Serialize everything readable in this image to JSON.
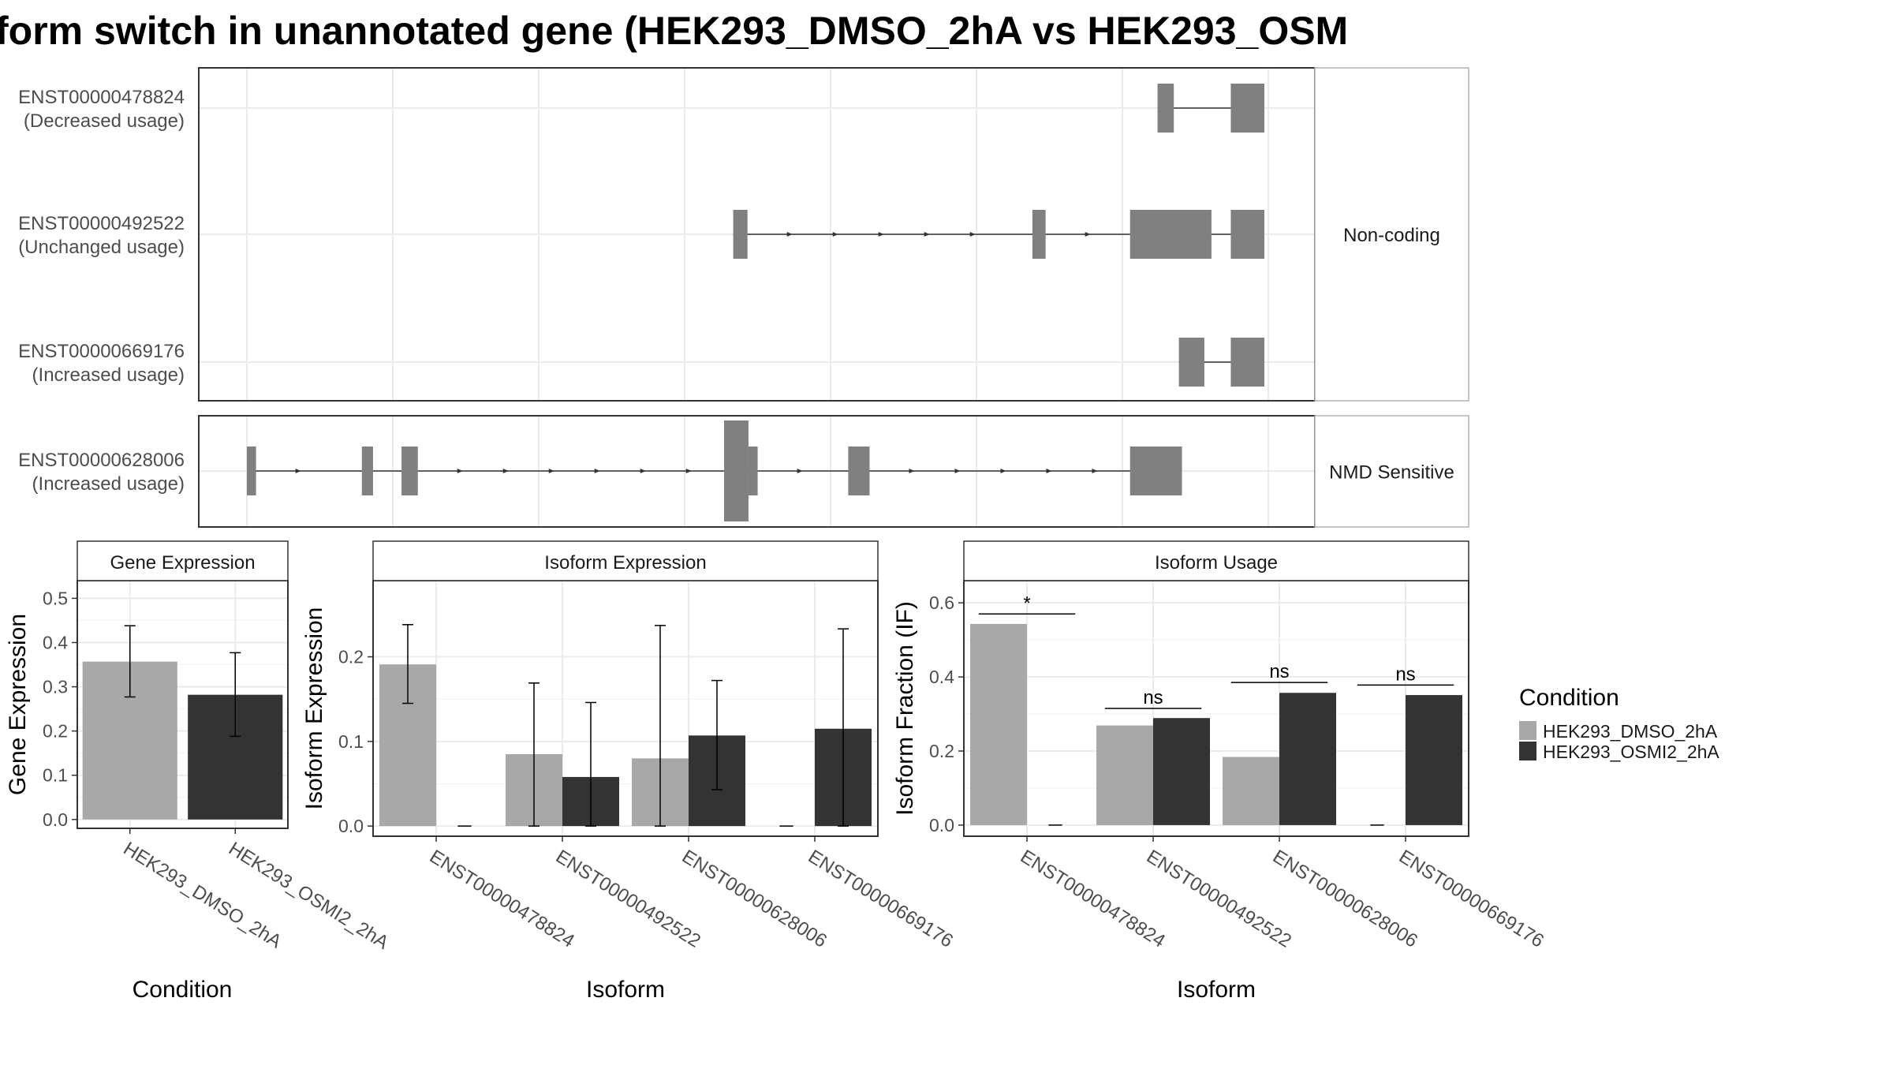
{
  "title": "form switch in unannotated gene (HEK293_DMSO_2hA vs HEK293_OSM",
  "colors": {
    "dmso": "#a8a8a8",
    "osmi": "#333333",
    "structure": "#808080",
    "grid": "#ebebeb",
    "strip_bg": "#ffffff",
    "border": "#333333",
    "strip_border": "#b3b3b3"
  },
  "structure": {
    "facets": [
      "Non-coding",
      "NMD Sensitive"
    ],
    "transcripts": [
      {
        "id": "ENST00000478824",
        "usage": "(Decreased usage)",
        "facet": 0,
        "exons": [
          [
            0.895,
            0.911
          ],
          [
            0.967,
            1.0
          ]
        ]
      },
      {
        "id": "ENST00000492522",
        "usage": "(Unchanged usage)",
        "facet": 0,
        "exons": [
          [
            0.478,
            0.492
          ],
          [
            0.772,
            0.785
          ],
          [
            0.868,
            0.948
          ],
          [
            0.967,
            1.0
          ]
        ]
      },
      {
        "id": "ENST00000669176",
        "usage": "(Increased usage)",
        "facet": 0,
        "exons": [
          [
            0.916,
            0.941
          ],
          [
            0.967,
            1.0
          ]
        ]
      },
      {
        "id": "ENST00000628006",
        "usage": "(Increased usage)",
        "facet": 1,
        "exons": [
          [
            0.0,
            0.009
          ],
          [
            0.113,
            0.124
          ],
          [
            0.152,
            0.168
          ],
          [
            0.469,
            0.493,
            "tall"
          ],
          [
            0.493,
            0.502
          ],
          [
            0.591,
            0.612
          ],
          [
            0.868,
            0.919
          ]
        ]
      }
    ]
  },
  "chart_data": [
    {
      "type": "bar",
      "title": "Gene Expression",
      "xlabel": "Condition",
      "ylabel": "Gene Expression",
      "categories": [
        "HEK293_DMSO_2hA",
        "HEK293_OSMI2_2hA"
      ],
      "values": [
        0.357,
        0.282
      ],
      "errors": [
        [
          0.277,
          0.438
        ],
        [
          0.188,
          0.377
        ]
      ],
      "ylim": [
        -0.02,
        0.54
      ],
      "yticks": [
        "0.0",
        "0.1",
        "0.2",
        "0.3",
        "0.4",
        "0.5"
      ]
    },
    {
      "type": "bar",
      "title": "Isoform Expression",
      "xlabel": "Isoform",
      "ylabel": "Isoform Expression",
      "categories": [
        "ENST00000478824",
        "ENST00000492522",
        "ENST00000628006",
        "ENST00000669176"
      ],
      "series": [
        {
          "name": "HEK293_DMSO_2hA",
          "values": [
            0.191,
            0.085,
            0.08,
            0.0
          ],
          "errors": [
            [
              0.145,
              0.238
            ],
            [
              0.0,
              0.169
            ],
            [
              0.0,
              0.237
            ],
            [
              0.0,
              0.0
            ]
          ]
        },
        {
          "name": "HEK293_OSMI2_2hA",
          "values": [
            0.0,
            0.058,
            0.107,
            0.115
          ],
          "errors": [
            [
              0.0,
              0.0
            ],
            [
              0.0,
              0.146
            ],
            [
              0.043,
              0.172
            ],
            [
              0.0,
              0.233
            ]
          ]
        }
      ],
      "ylim": [
        -0.012,
        0.29
      ],
      "yticks": [
        "0.0",
        "0.1",
        "0.2"
      ]
    },
    {
      "type": "bar",
      "title": "Isoform Usage",
      "xlabel": "Isoform",
      "ylabel": "Isoform Fraction (IF)",
      "categories": [
        "ENST00000478824",
        "ENST00000492522",
        "ENST00000628006",
        "ENST00000669176"
      ],
      "series": [
        {
          "name": "HEK293_DMSO_2hA",
          "values": [
            0.543,
            0.269,
            0.184,
            0.0
          ]
        },
        {
          "name": "HEK293_OSMI2_2hA",
          "values": [
            0.0,
            0.289,
            0.357,
            0.351
          ]
        }
      ],
      "significance": [
        "*",
        "ns",
        "ns",
        "ns"
      ],
      "sig_y": [
        0.57,
        0.315,
        0.385,
        0.378
      ],
      "ylim": [
        -0.03,
        0.66
      ],
      "yticks": [
        "0.0",
        "0.2",
        "0.4",
        "0.6"
      ]
    }
  ],
  "legend": {
    "title": "Condition",
    "items": [
      "HEK293_DMSO_2hA",
      "HEK293_OSMI2_2hA"
    ]
  }
}
